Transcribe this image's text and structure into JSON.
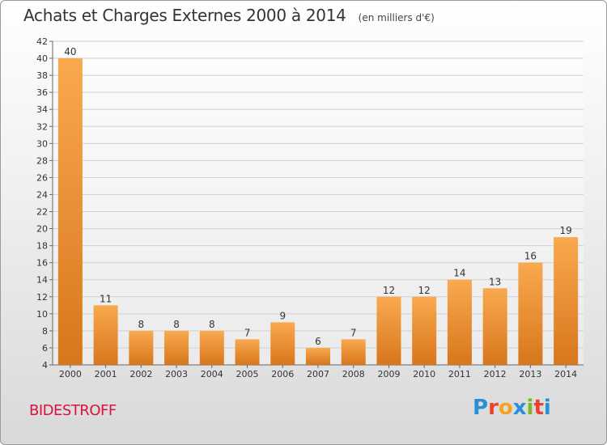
{
  "header": {
    "title": "Achats et Charges Externes 2000 à 2014",
    "unit": "(en milliers d'€)"
  },
  "footer": {
    "commune": "BIDESTROFF",
    "logo_letters": [
      "P",
      "r",
      "o",
      "x",
      "i",
      "t",
      "i"
    ],
    "logo_colors": [
      "#2a8fd6",
      "#e8432f",
      "#f2a41c",
      "#2a8fd6",
      "#7ab829",
      "#e8432f",
      "#2a8fd6"
    ]
  },
  "colors": {
    "bar_top": "#f9a94f",
    "bar_bottom": "#d8761c",
    "grid": "#d0d0d0",
    "axis": "#666666"
  },
  "chart_data": {
    "type": "bar",
    "title": "Achats et Charges Externes 2000 à 2014",
    "xlabel": "",
    "ylabel": "",
    "categories": [
      "2000",
      "2001",
      "2002",
      "2003",
      "2004",
      "2005",
      "2006",
      "2007",
      "2008",
      "2009",
      "2010",
      "2011",
      "2012",
      "2013",
      "2014"
    ],
    "values": [
      40,
      11,
      8,
      8,
      8,
      7,
      9,
      6,
      7,
      12,
      12,
      14,
      13,
      16,
      19
    ],
    "ylim": [
      4,
      42
    ],
    "yticks": [
      4,
      6,
      8,
      10,
      12,
      14,
      16,
      18,
      20,
      22,
      24,
      26,
      28,
      30,
      32,
      34,
      36,
      38,
      40,
      42
    ],
    "grid": true
  }
}
